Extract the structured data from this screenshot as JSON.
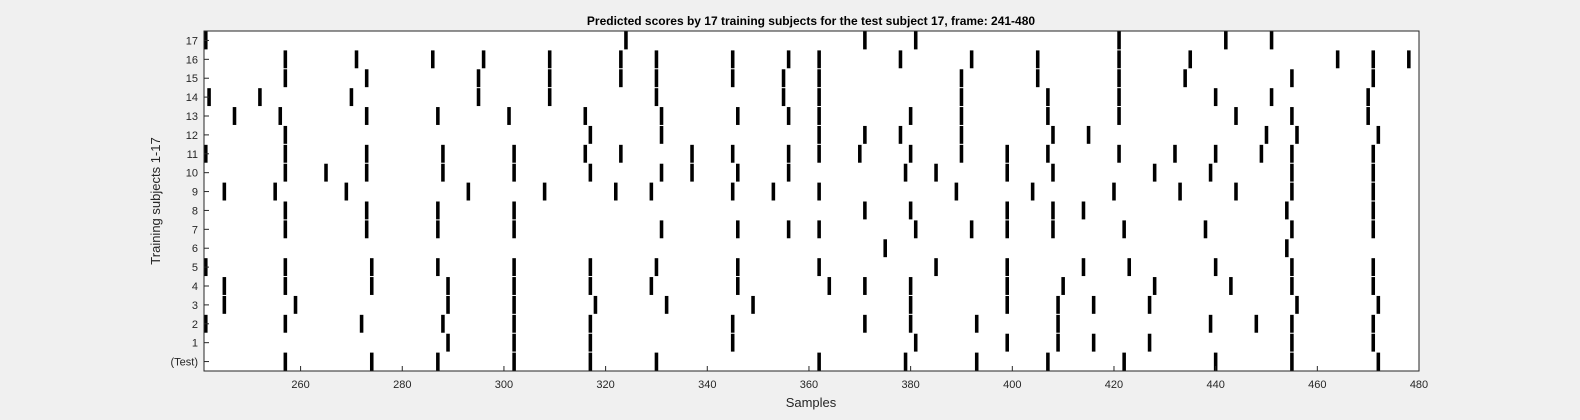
{
  "chart_data": {
    "type": "raster",
    "title": "Predicted scores by 17 training subjects for the test subject 17, frame: 241-480",
    "xlabel": "Samples",
    "ylabel": "Training subjects 1-17",
    "xlim": [
      241,
      480
    ],
    "xticks": [
      "260",
      "280",
      "300",
      "320",
      "340",
      "360",
      "380",
      "400",
      "420",
      "440",
      "460",
      "480"
    ],
    "yticks": [
      "(Test)",
      "1",
      "2",
      "3",
      "4",
      "5",
      "6",
      "7",
      "8",
      "9",
      "10",
      "11",
      "12",
      "13",
      "14",
      "15",
      "16",
      "17"
    ],
    "grid": false,
    "colors": {
      "mark": "#000000",
      "plot_bg": "#ffffff",
      "figure_bg": "#f0f0f0"
    },
    "rows": [
      {
        "label": "(Test)",
        "events": [
          257,
          274,
          287,
          302,
          317,
          330,
          362,
          379,
          393,
          407,
          422,
          440,
          455,
          472
        ]
      },
      {
        "label": "1",
        "events": [
          289,
          302,
          317,
          345,
          381,
          399,
          409,
          416,
          427,
          455,
          471
        ]
      },
      {
        "label": "2",
        "events": [
          241,
          257,
          272,
          288,
          302,
          317,
          345,
          371,
          380,
          393,
          409,
          439,
          448,
          455,
          471
        ]
      },
      {
        "label": "3",
        "events": [
          245,
          259,
          289,
          302,
          318,
          332,
          349,
          380,
          399,
          409,
          416,
          427,
          456,
          472
        ]
      },
      {
        "label": "4",
        "events": [
          245,
          257,
          274,
          289,
          302,
          317,
          329,
          346,
          364,
          371,
          380,
          399,
          410,
          428,
          443,
          455,
          471
        ]
      },
      {
        "label": "5",
        "events": [
          241,
          257,
          274,
          287,
          302,
          317,
          330,
          346,
          362,
          385,
          399,
          414,
          423,
          440,
          455,
          471
        ]
      },
      {
        "label": "6",
        "events": [
          375,
          454
        ]
      },
      {
        "label": "7",
        "events": [
          257,
          273,
          287,
          302,
          331,
          346,
          356,
          362,
          381,
          392,
          399,
          408,
          422,
          438,
          455,
          471
        ]
      },
      {
        "label": "8",
        "events": [
          257,
          273,
          287,
          302,
          371,
          380,
          399,
          408,
          414,
          454,
          471
        ]
      },
      {
        "label": "9",
        "events": [
          245,
          255,
          269,
          293,
          308,
          322,
          329,
          345,
          353,
          362,
          389,
          404,
          420,
          433,
          444,
          455,
          471
        ]
      },
      {
        "label": "10",
        "events": [
          257,
          265,
          273,
          288,
          302,
          317,
          331,
          337,
          346,
          356,
          379,
          385,
          399,
          408,
          428,
          439,
          455,
          471
        ]
      },
      {
        "label": "11",
        "events": [
          241,
          257,
          273,
          288,
          302,
          316,
          323,
          337,
          345,
          356,
          362,
          370,
          380,
          390,
          399,
          407,
          421,
          432,
          440,
          449,
          455,
          471
        ]
      },
      {
        "label": "12",
        "events": [
          257,
          317,
          331,
          362,
          371,
          378,
          390,
          408,
          415,
          450,
          456,
          472
        ]
      },
      {
        "label": "13",
        "events": [
          247,
          256,
          273,
          287,
          301,
          316,
          331,
          346,
          356,
          362,
          380,
          390,
          407,
          421,
          444,
          455,
          470
        ]
      },
      {
        "label": "14",
        "events": [
          242,
          252,
          270,
          295,
          309,
          330,
          355,
          362,
          390,
          407,
          421,
          440,
          451,
          470
        ]
      },
      {
        "label": "15",
        "events": [
          257,
          273,
          295,
          309,
          323,
          330,
          345,
          355,
          362,
          390,
          405,
          421,
          434,
          455,
          471
        ]
      },
      {
        "label": "16",
        "events": [
          257,
          271,
          286,
          296,
          309,
          323,
          330,
          345,
          356,
          362,
          378,
          392,
          405,
          421,
          435,
          464,
          471,
          478
        ]
      },
      {
        "label": "17",
        "events": [
          241,
          324,
          371,
          381,
          421,
          442,
          451
        ]
      }
    ]
  }
}
